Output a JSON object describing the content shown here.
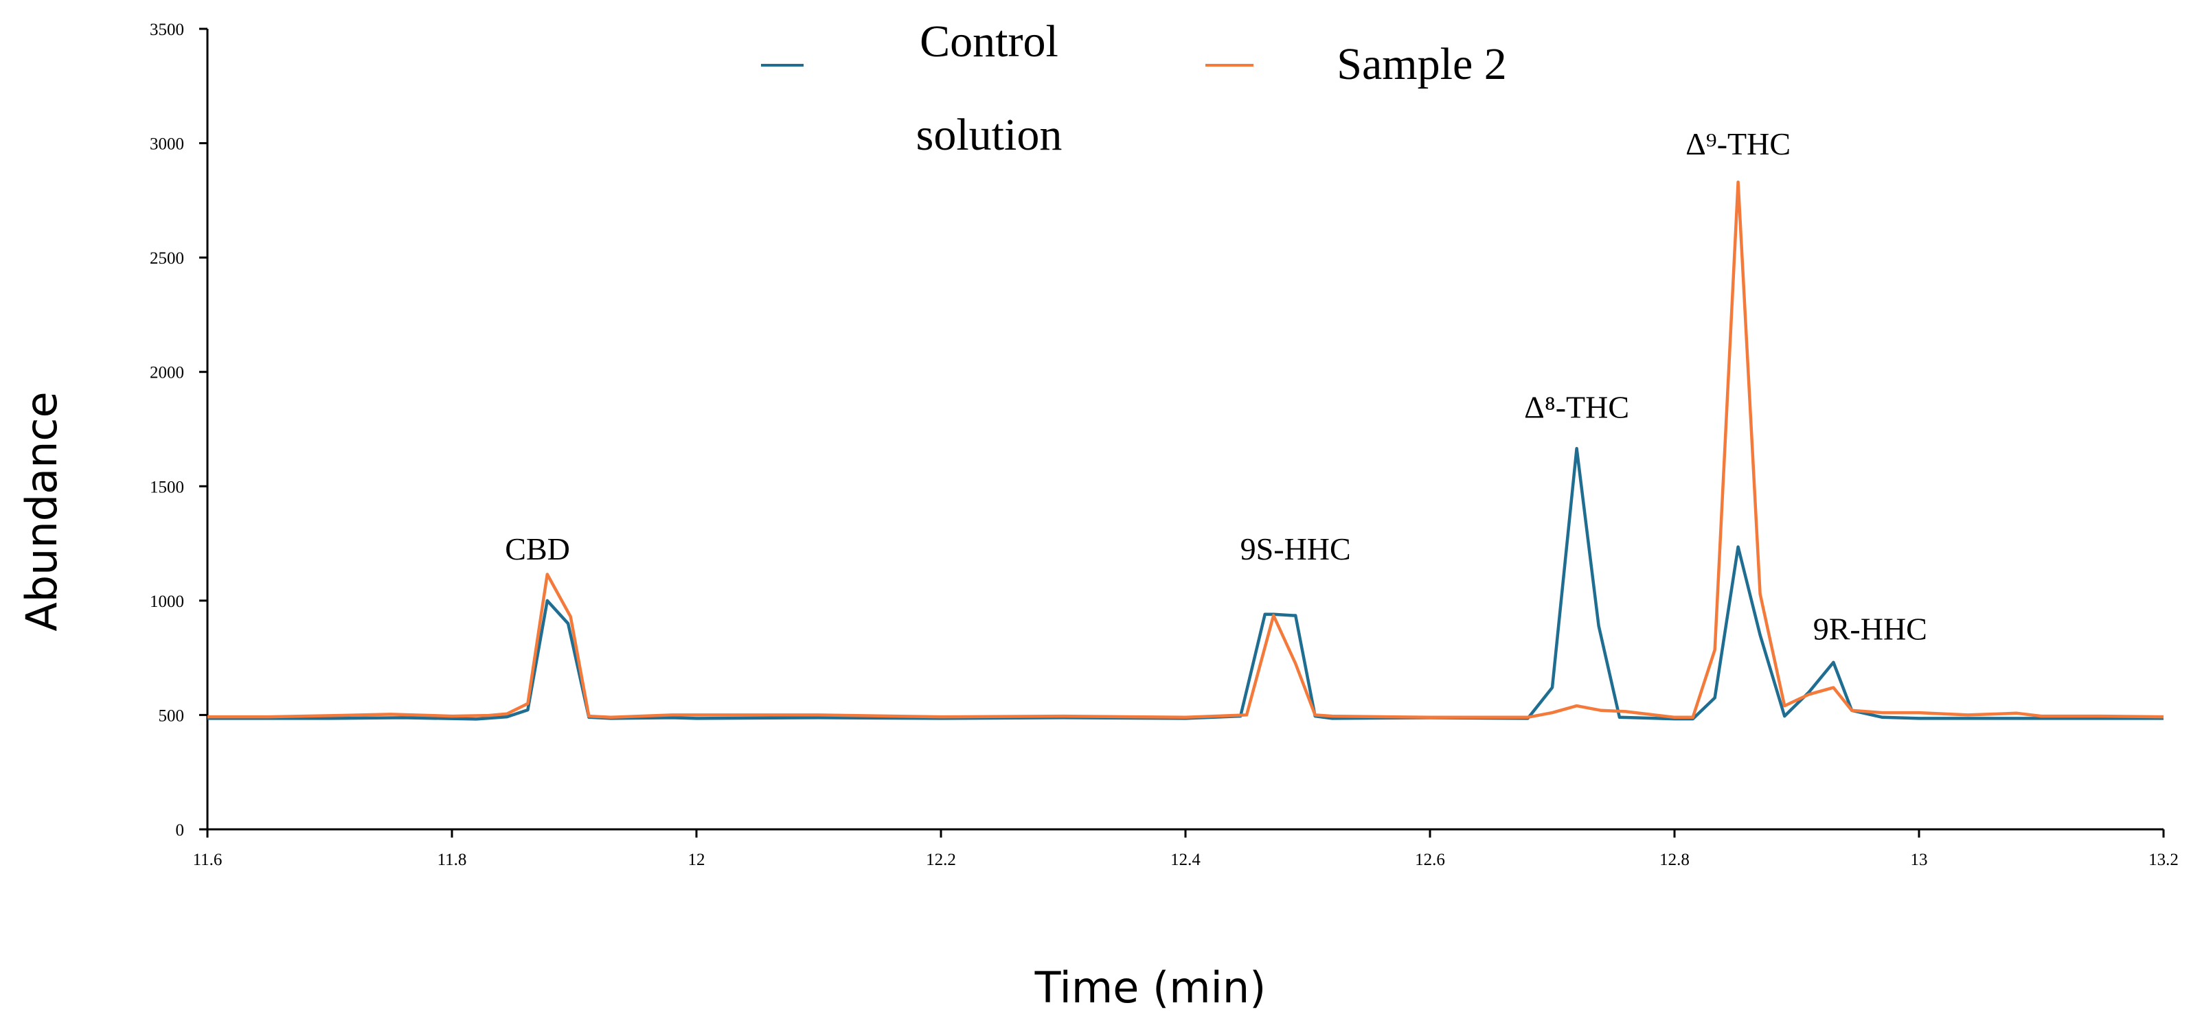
{
  "chart_data": {
    "type": "line",
    "title": "",
    "xlabel": "Time (min)",
    "ylabel": "Abundance",
    "xlim": [
      11.6,
      13.2
    ],
    "ylim": [
      0,
      3500
    ],
    "x_ticks": [
      11.6,
      11.8,
      12,
      12.2,
      12.4,
      12.6,
      12.8,
      13,
      13.2
    ],
    "x_tick_labels": [
      "11.6",
      "11.8",
      "12",
      "12.2",
      "12.4",
      "12.6",
      "12.8",
      "13",
      "13.2"
    ],
    "y_ticks": [
      0,
      500,
      1000,
      1500,
      2000,
      2500,
      3000,
      3500
    ],
    "y_tick_labels": [
      "0",
      "500",
      "1000",
      "1500",
      "2000",
      "2500",
      "3000",
      "3500"
    ],
    "grid": false,
    "legend_position": "top-center",
    "legend": [
      {
        "line1": "Control",
        "line2": "solution",
        "color": "#1f6e91"
      },
      {
        "line1": "Sample 2",
        "line2": "",
        "color": "#f47a3c"
      }
    ],
    "series": [
      {
        "name": "Control solution",
        "color": "#1f6e91",
        "x": [
          11.6,
          11.64,
          11.7,
          11.76,
          11.82,
          11.845,
          11.862,
          11.878,
          11.895,
          11.912,
          11.93,
          11.98,
          12.0,
          12.1,
          12.2,
          12.3,
          12.4,
          12.445,
          12.465,
          12.472,
          12.488,
          12.49,
          12.506,
          12.52,
          12.6,
          12.68,
          12.7,
          12.72,
          12.738,
          12.755,
          12.8,
          12.815,
          12.833,
          12.852,
          12.87,
          12.89,
          12.91,
          12.93,
          12.945,
          12.97,
          13.0,
          13.1,
          13.2
        ],
        "y": [
          485,
          485,
          485,
          488,
          482,
          492,
          522,
          1000,
          900,
          490,
          485,
          488,
          485,
          488,
          485,
          488,
          485,
          495,
          940,
          940,
          935,
          935,
          495,
          485,
          488,
          485,
          620,
          1665,
          890,
          490,
          483,
          483,
          575,
          1235,
          850,
          495,
          600,
          730,
          520,
          490,
          485,
          485,
          485
        ]
      },
      {
        "name": "Sample 2",
        "color": "#f47a3c",
        "x": [
          11.6,
          11.65,
          11.7,
          11.75,
          11.8,
          11.83,
          11.845,
          11.862,
          11.878,
          11.897,
          11.912,
          11.93,
          11.98,
          12.02,
          12.1,
          12.2,
          12.3,
          12.4,
          12.45,
          12.472,
          12.49,
          12.506,
          12.52,
          12.6,
          12.68,
          12.7,
          12.72,
          12.74,
          12.76,
          12.8,
          12.815,
          12.833,
          12.852,
          12.87,
          12.89,
          12.91,
          12.93,
          12.945,
          12.97,
          13.0,
          13.04,
          13.08,
          13.1,
          13.15,
          13.2
        ],
        "y": [
          492,
          492,
          497,
          503,
          495,
          498,
          505,
          550,
          1115,
          930,
          495,
          490,
          500,
          500,
          500,
          492,
          495,
          490,
          500,
          935,
          725,
          500,
          495,
          490,
          490,
          510,
          540,
          520,
          515,
          490,
          490,
          785,
          2830,
          1030,
          540,
          590,
          620,
          520,
          510,
          510,
          500,
          508,
          495,
          495,
          492
        ]
      }
    ],
    "annotations": [
      {
        "text": "CBD",
        "x": 11.87,
        "y": 1180
      },
      {
        "text": "9S-HHC",
        "x": 12.49,
        "y": 1180
      },
      {
        "text": "Δ⁸-THC",
        "x": 12.72,
        "y": 1800
      },
      {
        "text": "Δ⁹-THC",
        "x": 12.852,
        "y": 2950
      },
      {
        "text": "9R-HHC",
        "x": 12.96,
        "y": 830
      }
    ]
  }
}
